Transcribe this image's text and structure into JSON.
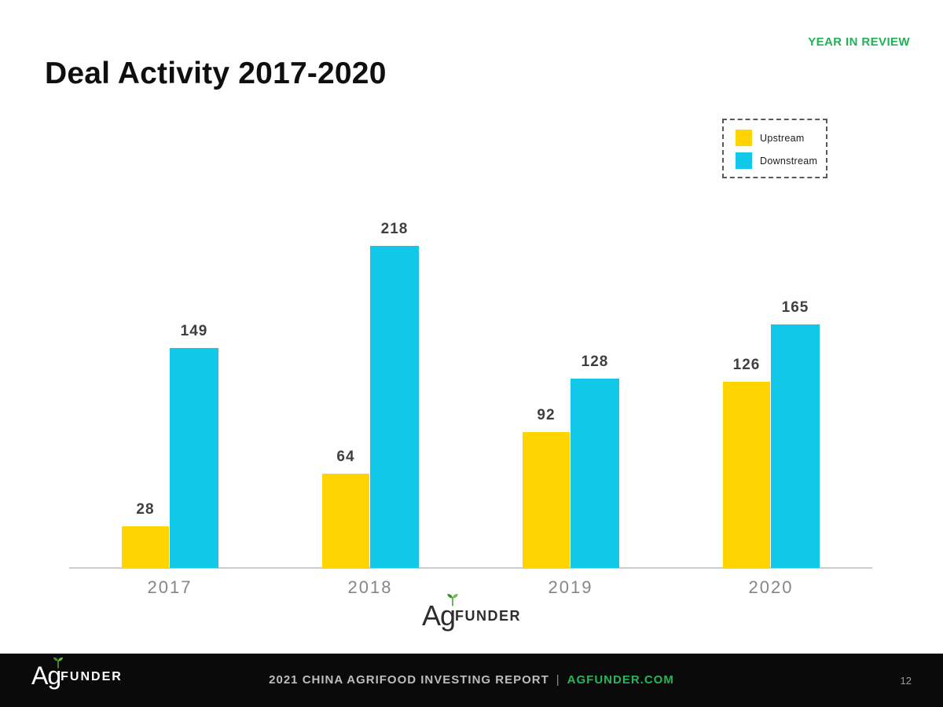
{
  "page": {
    "eyebrow": "YEAR IN REVIEW",
    "title": "Deal Activity 2017-2020",
    "page_number": "12"
  },
  "legend": {
    "items": [
      {
        "label": "Upstream",
        "color": "#FFD400"
      },
      {
        "label": "Downstream",
        "color": "#12C8E8"
      }
    ]
  },
  "chart_data": {
    "type": "bar",
    "categories": [
      "2017",
      "2018",
      "2019",
      "2020"
    ],
    "series": [
      {
        "name": "Upstream",
        "color": "#FFD400",
        "values": [
          28,
          64,
          92,
          126
        ]
      },
      {
        "name": "Downstream",
        "color": "#12C8E8",
        "values": [
          149,
          218,
          128,
          165
        ]
      }
    ],
    "title": "Deal Activity 2017-2020",
    "xlabel": "",
    "ylabel": "",
    "ylim": [
      0,
      240
    ],
    "grid": false,
    "legend_position": "top-right",
    "data_labels": true
  },
  "watermark": {
    "brand_ag": "Ag",
    "brand_rest": "FUNDER",
    "sprout_icon": "sprout-icon"
  },
  "footer": {
    "logo_ag": "Ag",
    "logo_rest": "FUNDER",
    "report_title": "2021 CHINA AGRIFOOD INVESTING REPORT",
    "separator": "|",
    "site": "AGFUNDER.COM"
  },
  "colors": {
    "accent_green": "#21B158",
    "upstream": "#FFD400",
    "downstream": "#12C8E8",
    "value_label": "#3F3F3F",
    "year_label": "#868686",
    "axis_line": "#CCCCCC",
    "footer_bg": "#0A0A0A",
    "footer_text": "#BDBDBD",
    "sprout_green_dark": "#3E8E2F",
    "sprout_green_light": "#6CBB45"
  }
}
